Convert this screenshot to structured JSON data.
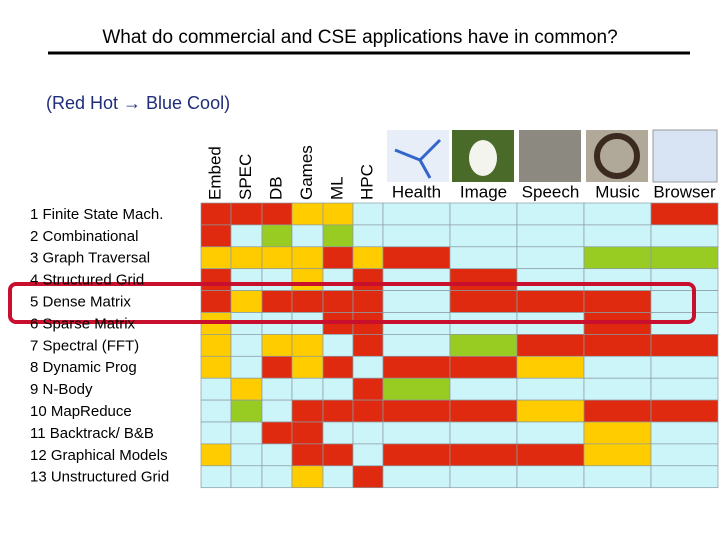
{
  "title": "What  do commercial and CSE applications have in common?",
  "legend": "(Red Hot → Blue Cool)",
  "palette": {
    "R": "#e02a10",
    "O": "#ffcc00",
    "G": "#99cc22",
    "B": "#ccf5fa"
  },
  "columns": [
    "Embed",
    "SPEC",
    "DB",
    "Games",
    "ML",
    "HPC",
    "Health",
    "Image",
    "Speech",
    "Music",
    "Browser"
  ],
  "rows": [
    {
      "label": "1 Finite State Mach.",
      "cells": [
        "R",
        "R",
        "R",
        "O",
        "O",
        "B",
        "B",
        "B",
        "B",
        "B",
        "R"
      ]
    },
    {
      "label": "2 Combinational",
      "cells": [
        "R",
        "B",
        "G",
        "B",
        "G",
        "B",
        "B",
        "B",
        "B",
        "B",
        "B"
      ]
    },
    {
      "label": "3 Graph  Traversal",
      "cells": [
        "O",
        "O",
        "O",
        "O",
        "R",
        "O",
        "R",
        "B",
        "B",
        "G",
        "G"
      ]
    },
    {
      "label": "4 Structured  Grid",
      "cells": [
        "R",
        "B",
        "B",
        "O",
        "B",
        "R",
        "B",
        "R",
        "B",
        "B",
        "B"
      ]
    },
    {
      "label": "5 Dense Matrix",
      "cells": [
        "R",
        "O",
        "R",
        "R",
        "R",
        "R",
        "B",
        "R",
        "R",
        "R",
        "B"
      ]
    },
    {
      "label": "6 Sparse  Matrix",
      "cells": [
        "O",
        "B",
        "B",
        "B",
        "R",
        "R",
        "B",
        "B",
        "B",
        "R",
        "B"
      ]
    },
    {
      "label": "7 Spectral  (FFT)",
      "cells": [
        "O",
        "B",
        "O",
        "O",
        "B",
        "R",
        "B",
        "G",
        "R",
        "R",
        "R"
      ]
    },
    {
      "label": "8 Dynamic Prog",
      "cells": [
        "O",
        "B",
        "R",
        "O",
        "R",
        "B",
        "R",
        "R",
        "O",
        "B",
        "B"
      ]
    },
    {
      "label": "9 N-Body",
      "cells": [
        "B",
        "O",
        "B",
        "B",
        "B",
        "R",
        "G",
        "B",
        "B",
        "B",
        "B"
      ]
    },
    {
      "label": "10 MapReduce",
      "cells": [
        "B",
        "G",
        "B",
        "R",
        "R",
        "R",
        "R",
        "R",
        "O",
        "R",
        "R"
      ]
    },
    {
      "label": "11 Backtrack/  B&B",
      "cells": [
        "B",
        "B",
        "R",
        "R",
        "B",
        "B",
        "B",
        "B",
        "B",
        "O",
        "B"
      ]
    },
    {
      "label": "12 Graphical Models",
      "cells": [
        "O",
        "B",
        "B",
        "R",
        "R",
        "B",
        "R",
        "R",
        "R",
        "O",
        "B"
      ]
    },
    {
      "label": "13 Unstructured Grid",
      "cells": [
        "B",
        "B",
        "B",
        "O",
        "B",
        "R",
        "B",
        "B",
        "B",
        "B",
        "B"
      ]
    }
  ]
}
